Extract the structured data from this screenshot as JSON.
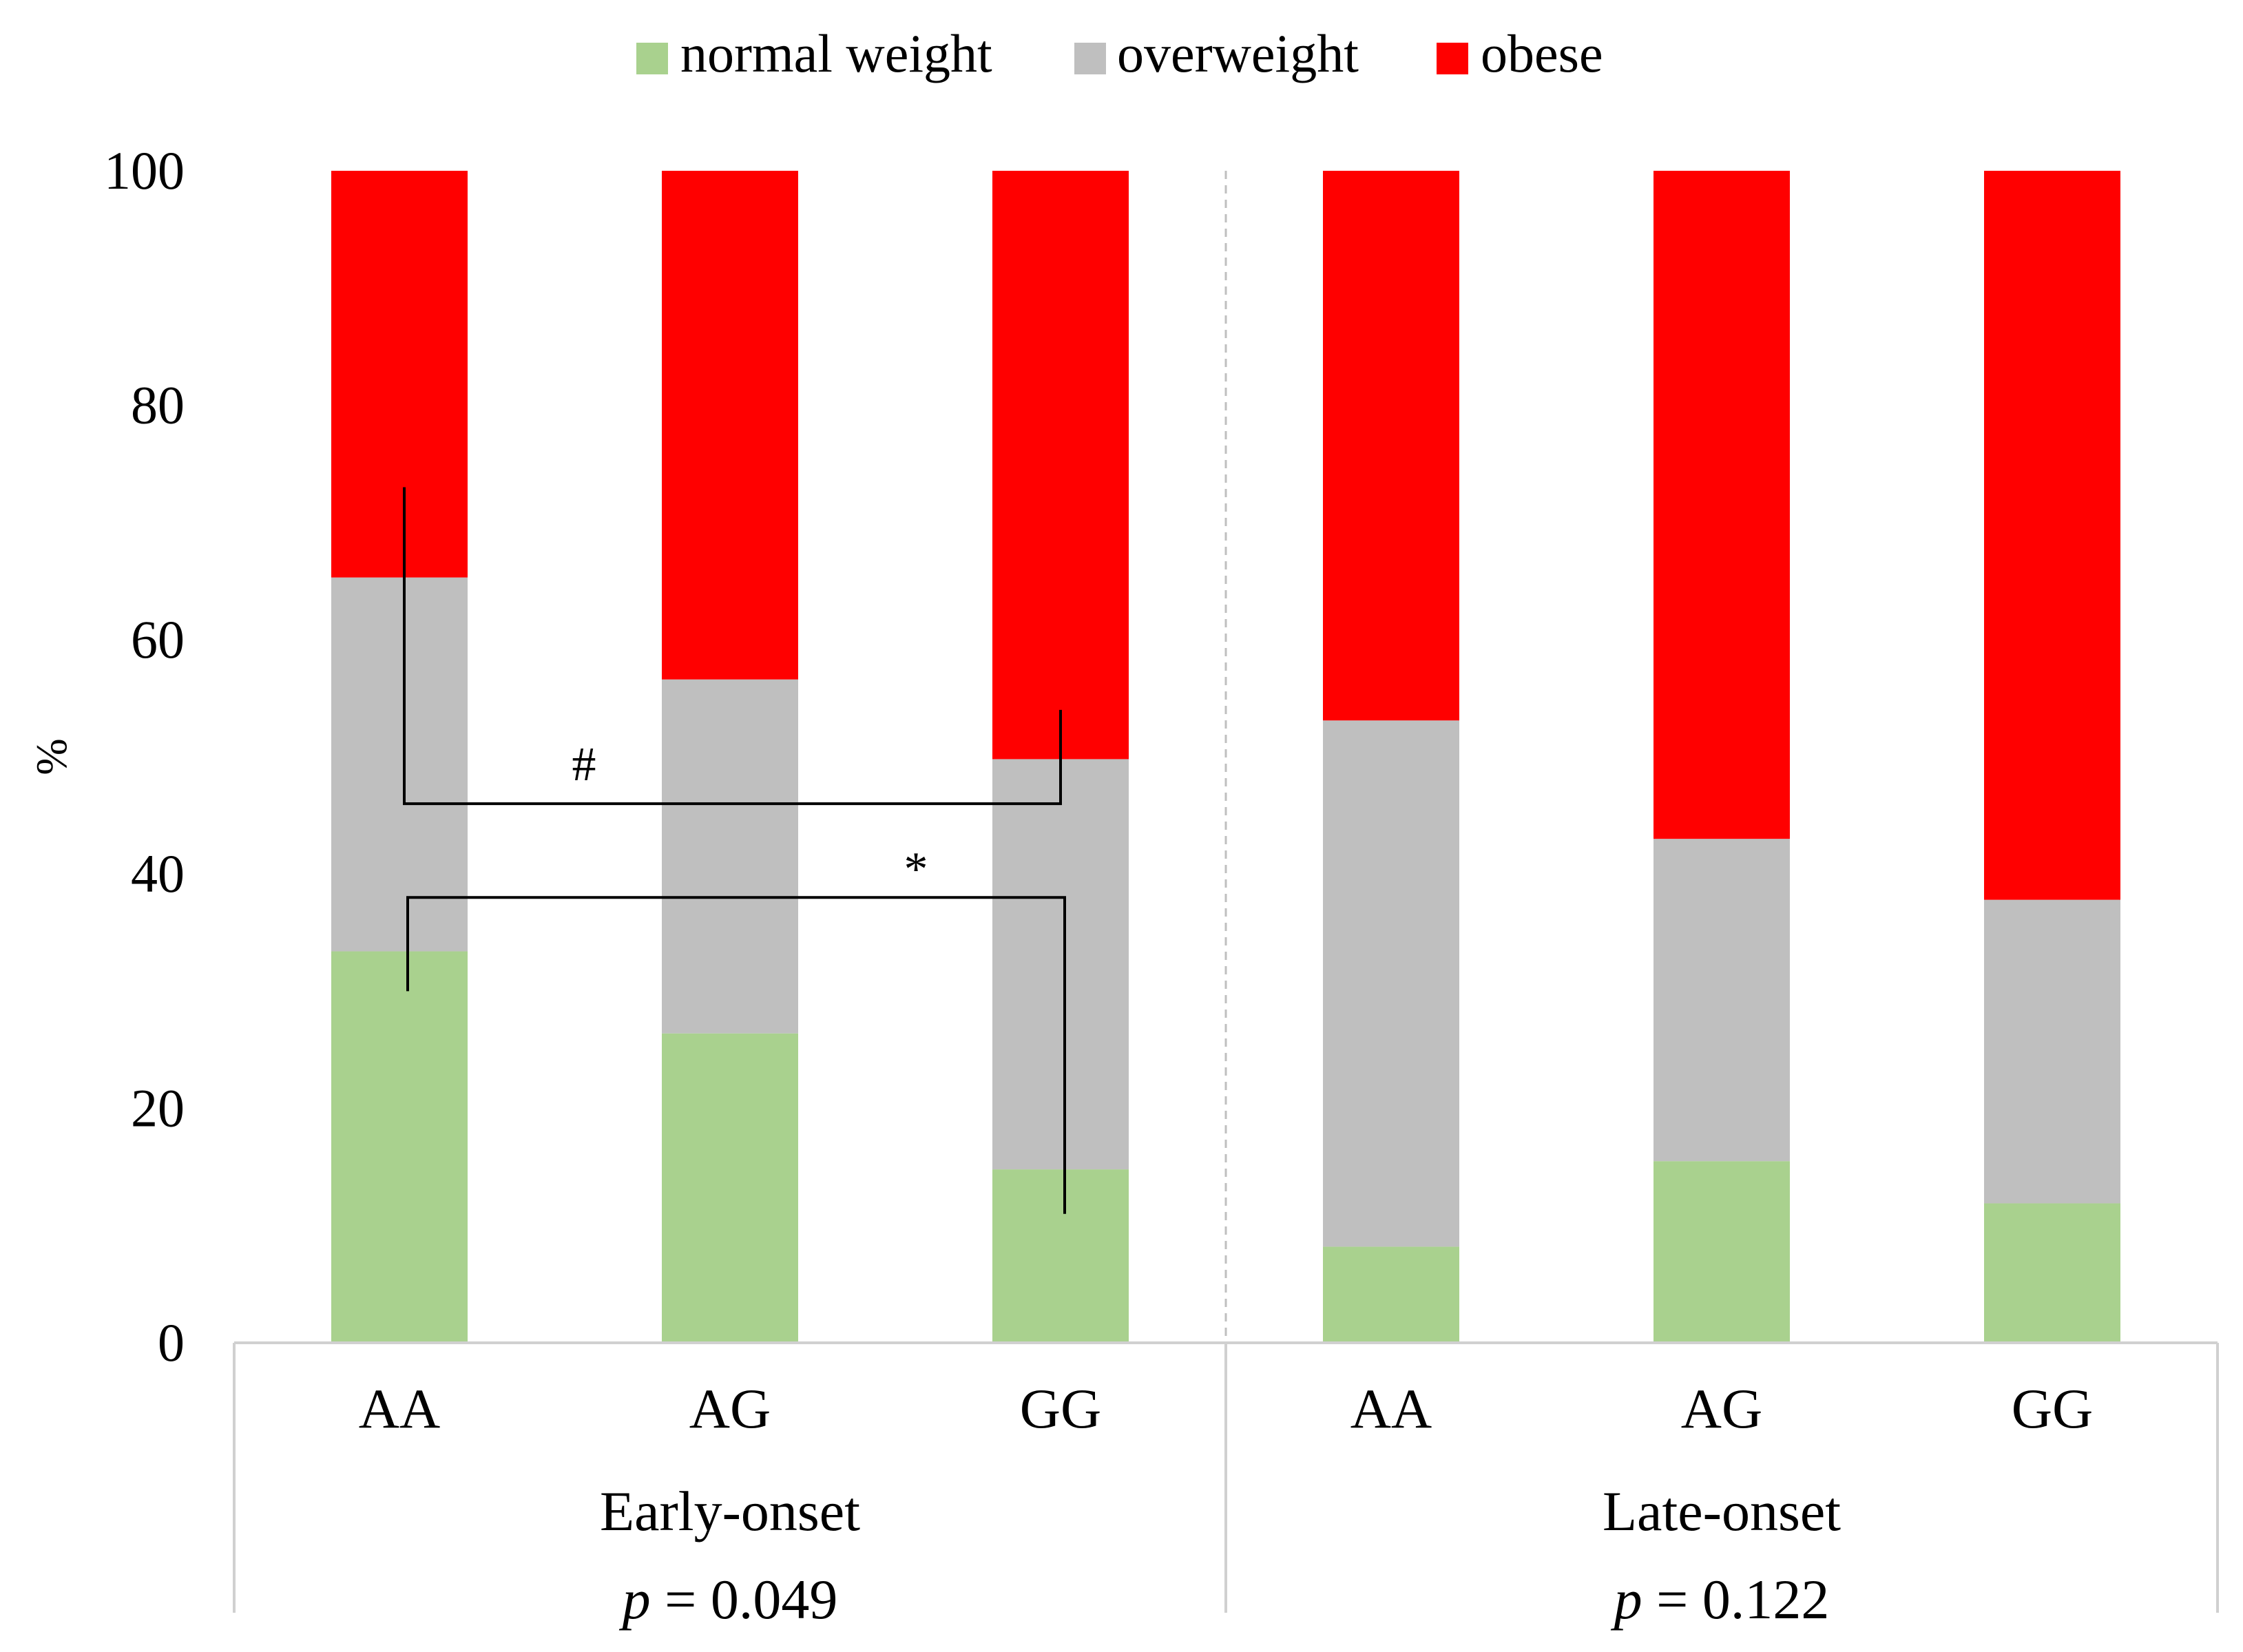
{
  "chart_data": {
    "type": "bar",
    "stacked": true,
    "ylabel": "%",
    "ylim": [
      0,
      100
    ],
    "yticks": [
      0,
      20,
      40,
      60,
      80,
      100
    ],
    "groups": [
      {
        "label": "Early-onset",
        "p_prefix": "p",
        "p_value": "= 0.049"
      },
      {
        "label": "Late-onset",
        "p_prefix": "p",
        "p_value": "= 0.122"
      }
    ],
    "categories": [
      "AA",
      "AG",
      "GG",
      "AA",
      "AG",
      "GG"
    ],
    "series": [
      {
        "name": "normal weight",
        "color": "#a9d18e",
        "values": [
          33.4,
          26.4,
          14.8,
          8.2,
          15.5,
          11.9
        ]
      },
      {
        "name": "overweight",
        "color": "#bfbfbf",
        "values": [
          31.9,
          30.2,
          35.0,
          44.9,
          27.5,
          25.9
        ]
      },
      {
        "name": "obese",
        "color": "#ff0000",
        "values": [
          34.7,
          43.4,
          50.2,
          46.9,
          57.0,
          62.2
        ]
      }
    ],
    "legend_position": "top-center",
    "annotations": [
      {
        "symbol": "#",
        "from": 0,
        "to": 2,
        "level": 46
      },
      {
        "symbol": "*",
        "from": 0,
        "to": 2,
        "level": 38
      }
    ]
  }
}
